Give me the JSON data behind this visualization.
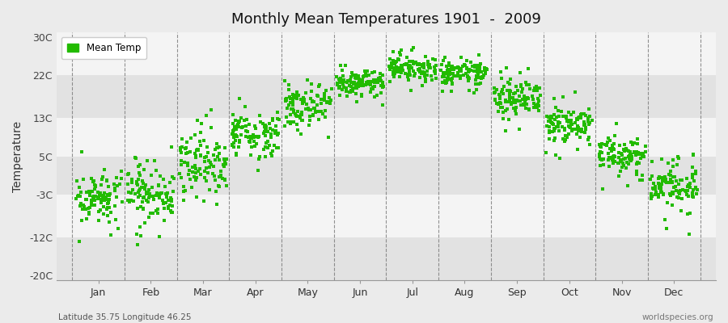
{
  "title": "Monthly Mean Temperatures 1901  -  2009",
  "ylabel": "Temperature",
  "subtitle_left": "Latitude 35.75 Longitude 46.25",
  "subtitle_right": "worldspecies.org",
  "yticks": [
    -20,
    -12,
    -3,
    5,
    13,
    22,
    30
  ],
  "ytick_labels": [
    "-20C",
    "-12C",
    "-3C",
    "5C",
    "13C",
    "22C",
    "30C"
  ],
  "ylim": [
    -21,
    31
  ],
  "months": [
    "Jan",
    "Feb",
    "Mar",
    "Apr",
    "May",
    "Jun",
    "Jul",
    "Aug",
    "Sep",
    "Oct",
    "Nov",
    "Dec"
  ],
  "dot_color": "#22bb00",
  "dot_size": 5,
  "background_color": "#ebebeb",
  "band_light": "#f4f4f4",
  "band_dark": "#e2e2e2",
  "mean_temps": [
    -3.5,
    -3.0,
    3.5,
    10.0,
    15.5,
    20.5,
    23.5,
    22.5,
    17.0,
    11.5,
    5.0,
    -1.5
  ],
  "temp_spreads": [
    2.5,
    3.0,
    3.0,
    2.5,
    2.0,
    1.5,
    1.2,
    1.5,
    2.0,
    2.0,
    2.0,
    2.5
  ],
  "outlier_prob": 0.05
}
